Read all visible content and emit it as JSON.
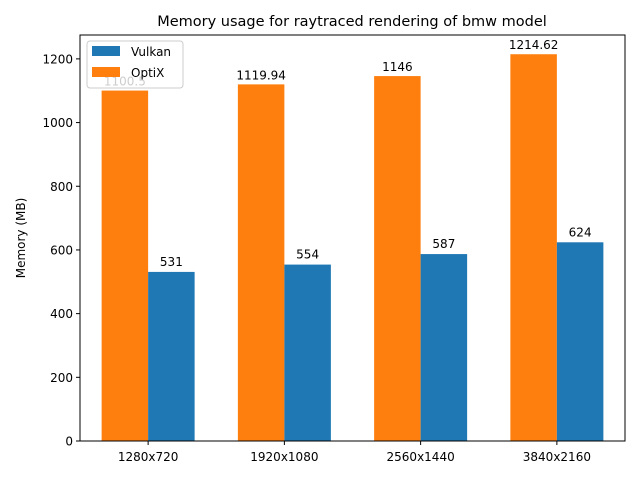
{
  "chart_data": {
    "type": "bar",
    "title": "Memory usage for raytraced rendering of bmw model",
    "xlabel": "",
    "ylabel": "Memory (MB)",
    "categories": [
      "1280x720",
      "1920x1080",
      "2560x1440",
      "3840x2160"
    ],
    "ylim": [
      0,
      1275
    ],
    "yticks": [
      0,
      200,
      400,
      600,
      800,
      1000,
      1200
    ],
    "grid": false,
    "legend_position": "top-left",
    "series": [
      {
        "name": "Vulkan",
        "color": "#1f77b4",
        "values": [
          531,
          554,
          587,
          624
        ],
        "labels": [
          "531",
          "554",
          "587",
          "624"
        ]
      },
      {
        "name": "OptiX",
        "color": "#ff7f0e",
        "values": [
          1100.5,
          1119.94,
          1146,
          1214.62
        ],
        "labels": [
          "1100.5",
          "1119.94",
          "1146",
          "1214.62"
        ]
      }
    ]
  }
}
